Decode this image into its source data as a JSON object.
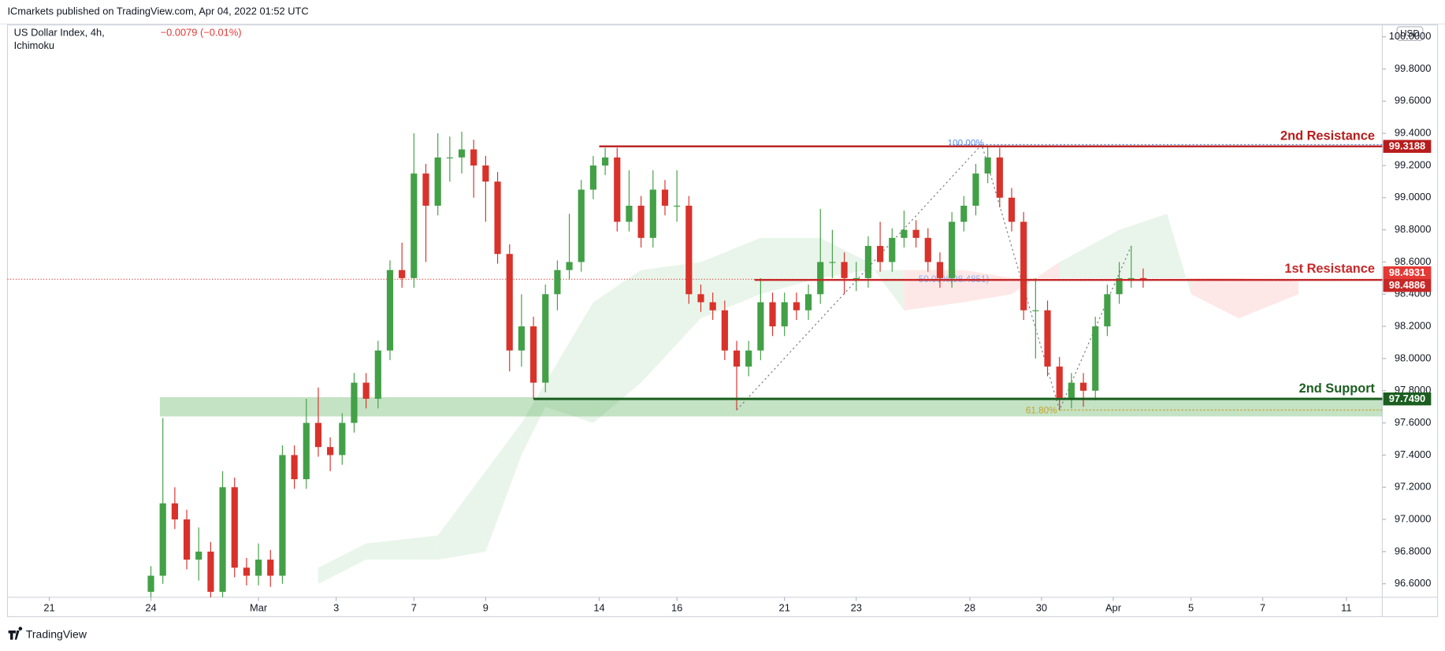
{
  "header": {
    "published": "ICmarkets published on TradingView.com, Apr 04, 2022 01:52 UTC",
    "symbol": "US Dollar Index, 4h,",
    "indicator": "Ichimoku",
    "change": "−0.0079 (−0.01%)",
    "currency": "USD"
  },
  "footer": {
    "brand": "TradingView"
  },
  "chart_data": {
    "type": "candlestick",
    "xlim": [
      0,
      230
    ],
    "ylim": [
      96.516,
      100.074
    ],
    "xticks": [
      {
        "value": 7,
        "label": "21"
      },
      {
        "value": 24,
        "label": "24"
      },
      {
        "value": 42,
        "label": "Mar"
      },
      {
        "value": 55,
        "label": "3"
      },
      {
        "value": 68,
        "label": "7"
      },
      {
        "value": 80,
        "label": "9"
      },
      {
        "value": 99,
        "label": "14"
      },
      {
        "value": 112,
        "label": "16"
      },
      {
        "value": 130,
        "label": "21"
      },
      {
        "value": 142,
        "label": "23"
      },
      {
        "value": 161,
        "label": "28"
      },
      {
        "value": 173,
        "label": "30"
      },
      {
        "value": 185,
        "label": "Apr"
      },
      {
        "value": 198,
        "label": "5"
      },
      {
        "value": 210,
        "label": "7"
      },
      {
        "value": 224,
        "label": "11"
      }
    ],
    "yticks": [
      {
        "value": 96.6,
        "label": "96.6000"
      },
      {
        "value": 96.8,
        "label": "96.8000"
      },
      {
        "value": 97,
        "label": "97.0000"
      },
      {
        "value": 97.2,
        "label": "97.2000"
      },
      {
        "value": 97.4,
        "label": "97.4000"
      },
      {
        "value": 97.6,
        "label": "97.6000"
      },
      {
        "value": 97.8,
        "label": "97.8000"
      },
      {
        "value": 98,
        "label": "98.0000"
      },
      {
        "value": 98.2,
        "label": "98.2000"
      },
      {
        "value": 98.4,
        "label": "98.4000"
      },
      {
        "value": 98.6,
        "label": "98.6000"
      },
      {
        "value": 98.8,
        "label": "98.8000"
      },
      {
        "value": 99,
        "label": "99.0000"
      },
      {
        "value": 99.2,
        "label": "99.2000"
      },
      {
        "value": 99.4,
        "label": "99.4000"
      },
      {
        "value": 99.6,
        "label": "99.6000"
      },
      {
        "value": 99.8,
        "label": "99.8000"
      },
      {
        "value": 100,
        "label": "100.0000"
      }
    ],
    "up_color": "#43a047",
    "down_color": "#d8322b",
    "x": [
      24,
      26,
      28,
      30,
      32,
      34,
      36,
      38,
      40,
      42,
      44,
      46,
      48,
      50,
      52,
      54,
      56,
      58,
      60,
      62,
      64,
      66,
      68,
      70,
      72,
      74,
      76,
      78,
      80,
      82,
      84,
      86,
      88,
      90,
      92,
      94,
      96,
      98,
      100,
      102,
      104,
      106,
      108,
      110,
      112,
      114,
      116,
      118,
      120,
      122,
      124,
      126,
      128,
      130,
      132,
      134,
      136,
      138,
      140,
      142,
      144,
      146,
      148,
      150,
      152,
      154,
      156,
      158,
      160,
      162,
      164,
      166,
      168,
      170,
      172,
      174,
      176,
      178,
      180,
      182,
      184,
      186,
      188,
      190
    ],
    "open": [
      96.55,
      96.65,
      97.1,
      97.0,
      96.75,
      96.8,
      96.55,
      97.2,
      96.7,
      96.65,
      96.75,
      96.65,
      97.4,
      97.25,
      97.6,
      97.45,
      97.4,
      97.6,
      97.85,
      97.75,
      98.05,
      98.55,
      98.5,
      99.15,
      98.95,
      99.25,
      99.25,
      99.3,
      99.2,
      99.1,
      98.65,
      98.05,
      98.2,
      97.85,
      98.4,
      98.55,
      98.6,
      99.05,
      99.2,
      99.25,
      98.85,
      98.95,
      98.75,
      99.05,
      98.95,
      98.95,
      98.4,
      98.35,
      98.3,
      98.05,
      97.95,
      98.05,
      98.35,
      98.2,
      98.35,
      98.3,
      98.4,
      98.6,
      98.6,
      98.5,
      98.5,
      98.7,
      98.6,
      98.75,
      98.8,
      98.75,
      98.6,
      98.5,
      98.85,
      98.95,
      99.15,
      99.25,
      99.0,
      98.85,
      98.3,
      98.3,
      97.95,
      97.75,
      97.85,
      97.8,
      98.2,
      98.4,
      98.5,
      98.5
    ],
    "high": [
      96.71,
      97.63,
      97.2,
      97.06,
      96.95,
      96.86,
      97.3,
      97.26,
      96.76,
      96.85,
      96.81,
      97.46,
      97.46,
      97.75,
      97.82,
      97.51,
      97.66,
      97.91,
      97.91,
      98.11,
      98.61,
      98.72,
      99.4,
      99.21,
      99.4,
      99.38,
      99.41,
      99.36,
      99.26,
      99.16,
      98.71,
      98.4,
      98.26,
      98.46,
      98.61,
      98.9,
      99.11,
      99.26,
      99.31,
      99.31,
      99.17,
      99.01,
      99.17,
      99.11,
      99.17,
      99.01,
      98.46,
      98.41,
      98.36,
      98.11,
      98.11,
      98.5,
      98.41,
      98.41,
      98.41,
      98.46,
      98.93,
      98.8,
      98.66,
      98.6,
      98.76,
      98.85,
      98.81,
      98.92,
      98.86,
      98.81,
      98.66,
      98.91,
      99.01,
      99.21,
      99.32,
      99.31,
      99.06,
      98.91,
      98.5,
      98.36,
      98.01,
      97.91,
      97.91,
      98.26,
      98.46,
      98.6,
      98.7,
      98.56
    ],
    "low": [
      96.49,
      96.6,
      96.94,
      96.69,
      96.62,
      96.49,
      96.5,
      96.64,
      96.59,
      96.59,
      96.58,
      96.6,
      97.19,
      97.19,
      97.39,
      97.3,
      97.34,
      97.54,
      97.69,
      97.69,
      97.99,
      98.44,
      98.44,
      98.6,
      98.89,
      99.1,
      99.15,
      99.0,
      98.85,
      98.59,
      97.92,
      97.95,
      97.75,
      97.79,
      98.3,
      98.49,
      98.54,
      98.99,
      99.14,
      98.79,
      98.79,
      98.69,
      98.69,
      98.89,
      98.85,
      98.34,
      98.29,
      98.24,
      97.99,
      97.68,
      97.89,
      97.99,
      98.14,
      98.14,
      98.24,
      98.24,
      98.34,
      98.5,
      98.4,
      98.42,
      98.44,
      98.54,
      98.54,
      98.69,
      98.69,
      98.54,
      98.44,
      98.44,
      98.79,
      98.89,
      99.09,
      98.94,
      98.79,
      98.24,
      98.0,
      97.89,
      97.68,
      97.69,
      97.7,
      97.74,
      98.14,
      98.34,
      98.44,
      98.44
    ],
    "close": [
      96.65,
      97.1,
      97.0,
      96.75,
      96.8,
      96.55,
      97.2,
      96.7,
      96.65,
      96.75,
      96.65,
      97.4,
      97.25,
      97.6,
      97.45,
      97.4,
      97.6,
      97.85,
      97.75,
      98.05,
      98.55,
      98.5,
      99.15,
      98.95,
      99.25,
      99.25,
      99.3,
      99.2,
      99.1,
      98.65,
      98.05,
      98.2,
      97.85,
      98.4,
      98.55,
      98.6,
      99.05,
      99.2,
      99.25,
      98.85,
      98.95,
      98.75,
      99.05,
      98.95,
      98.95,
      98.4,
      98.35,
      98.3,
      98.05,
      97.95,
      98.05,
      98.35,
      98.2,
      98.35,
      98.3,
      98.4,
      98.6,
      98.6,
      98.5,
      98.5,
      98.7,
      98.6,
      98.75,
      98.8,
      98.75,
      98.6,
      98.5,
      98.85,
      98.95,
      99.15,
      99.25,
      99.0,
      98.85,
      98.3,
      98.3,
      97.95,
      97.75,
      97.85,
      97.8,
      98.2,
      98.4,
      98.5,
      98.5,
      98.49
    ],
    "cloud": {
      "x": [
        52,
        60,
        72,
        80,
        86,
        90,
        98,
        106,
        116,
        126,
        136,
        144,
        150,
        160,
        168,
        176,
        186,
        194,
        198,
        206,
        216
      ],
      "span_a": [
        96.7,
        96.85,
        96.9,
        97.3,
        97.6,
        97.85,
        98.35,
        98.55,
        98.6,
        98.75,
        98.75,
        98.6,
        98.3,
        98.35,
        98.4,
        98.6,
        98.8,
        98.9,
        98.4,
        98.25,
        98.4
      ],
      "span_b": [
        96.6,
        96.75,
        96.75,
        96.8,
        97.4,
        97.7,
        97.6,
        97.85,
        98.25,
        98.4,
        98.5,
        98.55,
        98.55,
        98.55,
        98.5,
        98.5,
        98.5,
        98.5,
        98.5,
        98.5,
        98.48
      ],
      "up_color": "#4caf50",
      "down_color": "#f44336"
    },
    "zone": {
      "low": 97.64,
      "high": 97.76,
      "x": 25.5,
      "color": "#7cbf7c"
    },
    "levels": [
      {
        "name": "2nd Resistance",
        "value": 99.3188,
        "value_label": "99.3188",
        "x": 99,
        "color": "#b71c1c"
      },
      {
        "name": "1st Resistance",
        "value": 98.4886,
        "value_label": "98.4886",
        "x": 125,
        "color": "#c62828"
      },
      {
        "name": "2nd Support",
        "value": 97.749,
        "value_label": "97.7490",
        "x": 88,
        "color": "#1b5e20"
      }
    ],
    "last": {
      "value": 98.4931,
      "value_label": "98.4931",
      "color": "#e53935"
    },
    "trendline": {
      "x": [
        122,
        163,
        176,
        188
      ],
      "y": [
        97.68,
        99.33,
        97.68,
        98.7
      ]
    },
    "fib": [
      {
        "label": "100.00%",
        "value": 99.33,
        "color": "#5b8def"
      },
      {
        "label": "50.00%(98.4851)",
        "value": 98.4851,
        "color": "#8fb1ef"
      },
      {
        "label": "61.80%",
        "value": 97.68,
        "color": "#c9a227"
      }
    ]
  }
}
